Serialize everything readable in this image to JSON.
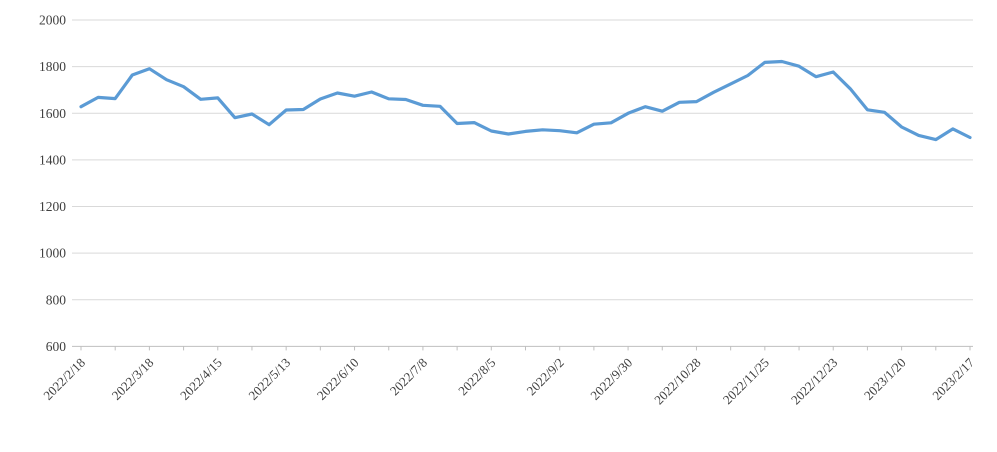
{
  "chart_data": {
    "type": "line",
    "title": "",
    "legend": "none",
    "grid": "horizontal",
    "ylim": [
      600,
      2000
    ],
    "y_ticks": [
      600,
      800,
      1000,
      1200,
      1400,
      1600,
      1800,
      2000
    ],
    "label_interval": 4,
    "x_labels_shown": [
      "2022/2/18",
      "2022/3/18",
      "2022/4/15",
      "2022/5/13",
      "2022/6/10",
      "2022/7/8",
      "2022/8/5",
      "2022/9/2",
      "2022/9/30",
      "2022/10/28",
      "2022/11/25",
      "2022/12/23",
      "2023/1/20",
      "2023/2/17"
    ],
    "x": [
      "2022/2/18",
      "2022/2/25",
      "2022/3/4",
      "2022/3/11",
      "2022/3/18",
      "2022/3/25",
      "2022/4/1",
      "2022/4/8",
      "2022/4/15",
      "2022/4/22",
      "2022/4/29",
      "2022/5/6",
      "2022/5/13",
      "2022/5/20",
      "2022/5/27",
      "2022/6/3",
      "2022/6/10",
      "2022/6/17",
      "2022/6/24",
      "2022/7/1",
      "2022/7/8",
      "2022/7/15",
      "2022/7/22",
      "2022/7/29",
      "2022/8/5",
      "2022/8/12",
      "2022/8/19",
      "2022/8/26",
      "2022/9/2",
      "2022/9/9",
      "2022/9/16",
      "2022/9/23",
      "2022/9/30",
      "2022/10/7",
      "2022/10/14",
      "2022/10/21",
      "2022/10/28",
      "2022/11/4",
      "2022/11/11",
      "2022/11/18",
      "2022/11/25",
      "2022/12/2",
      "2022/12/9",
      "2022/12/16",
      "2022/12/23",
      "2022/12/30",
      "2023/1/6",
      "2023/1/13",
      "2023/1/20",
      "2023/1/27",
      "2023/2/3",
      "2023/2/10",
      "2023/2/17"
    ],
    "series": [
      {
        "name": "",
        "values": [
          1628,
          1668,
          1663,
          1764,
          1791,
          1744,
          1714,
          1660,
          1666,
          1581,
          1597,
          1551,
          1614,
          1616,
          1661,
          1687,
          1673,
          1691,
          1662,
          1659,
          1634,
          1630,
          1556,
          1560,
          1524,
          1511,
          1522,
          1529,
          1525,
          1516,
          1553,
          1559,
          1600,
          1628,
          1609,
          1647,
          1650,
          1690,
          1726,
          1762,
          1818,
          1822,
          1802,
          1757,
          1777,
          1705,
          1615,
          1604,
          1541,
          1505,
          1487,
          1533,
          1496
        ]
      }
    ],
    "colors": {
      "line": "#5B9BD5",
      "gridline": "#D9D9D9",
      "axis_line": "#BFBFBF",
      "tick_text": "#3F3F3F"
    }
  }
}
